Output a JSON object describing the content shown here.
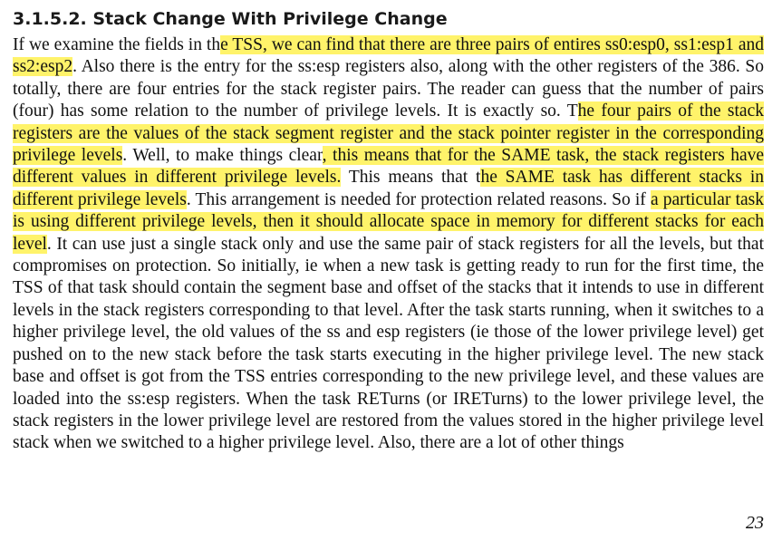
{
  "section": {
    "heading": "3.1.5.2. Stack Change With Privilege Change"
  },
  "paragraph": {
    "segments": [
      {
        "text": "If we examine the fields in th",
        "highlight": false
      },
      {
        "text": "e TSS, we can find that there are three pairs of entires ss0:esp0, ss1:esp1 and ss2:esp2",
        "highlight": true
      },
      {
        "text": ". Also there is the entry for the ss:esp registers also, along with the other registers of the 386. So totally, there are four entries for the stack register pairs. The reader can guess that the number of pairs (four) has some relation to the number of privilege levels. It is exactly so. T",
        "highlight": false
      },
      {
        "text": "he four pairs of the stack registers are the values of the stack segment register and the stack pointer register in the corresponding privilege levels",
        "highlight": true
      },
      {
        "text": ". Well, to make things clear",
        "highlight": false
      },
      {
        "text": ", this means that for the SAME task, the stack registers have different values in different privilege levels.",
        "highlight": true
      },
      {
        "text": " This means that t",
        "highlight": false
      },
      {
        "text": "he SAME task has different stacks in different privilege levels",
        "highlight": true
      },
      {
        "text": ". This arrangement is needed for protection related reasons. So if ",
        "highlight": false
      },
      {
        "text": "a particular task is using different privilege levels, then it should allocate space in memory for different stacks for each level",
        "highlight": true
      },
      {
        "text": ". It can use just a single stack only and use the same pair of stack registers for all the levels, but that compromises on protection. So initially, ie when a new task is getting ready to run for the first time, the TSS of that task should contain the segment base and offset of the stacks that it intends to use in different levels in the stack registers corresponding to that level. After the task starts running, when it switches to a higher privilege level, the old values of the ss and esp registers (ie those of the lower privilege level) get pushed on to the new stack before the task starts executing in the higher privilege level. The new stack base and offset is got from the TSS entries corresponding to the new privilege level, and these values are loaded into the ss:esp registers. When the task RETurns (or IRETurns) to the lower privilege level, the stack registers in the lower privilege level are restored from the values stored in the higher privilege level stack when we switched to a higher privilege level. Also, there are a lot of other things",
        "highlight": false
      }
    ]
  },
  "footer": {
    "page_number": "23"
  },
  "colors": {
    "highlight": "#fff36a",
    "text": "#111111"
  }
}
